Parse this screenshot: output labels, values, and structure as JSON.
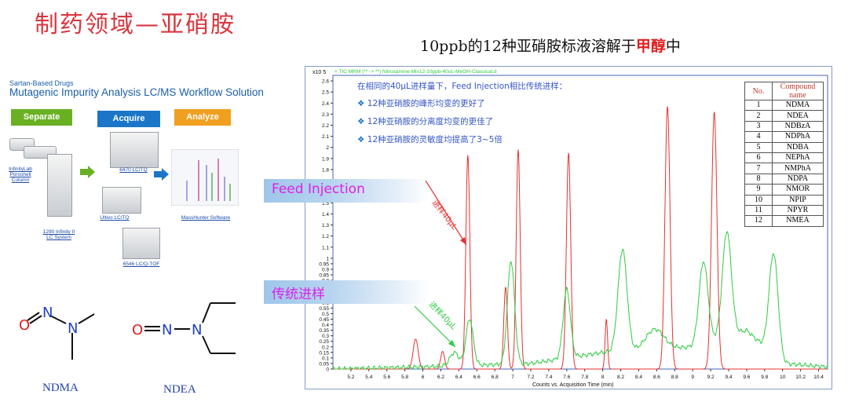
{
  "page_title": "制药领域—亚硝胺",
  "chart_title_pre": "10ppb的12种亚硝胺标液溶解于",
  "chart_title_hl": "甲醇",
  "chart_title_post": "中",
  "workflow": {
    "subtitle": "Sartan-Based Drugs",
    "title": "Mutagenic Impurity Analysis LC/MS Workflow Solution",
    "steps": [
      {
        "label": "Separate",
        "color": "#6ab023"
      },
      {
        "label": "Acquire",
        "color": "#1b76c8"
      },
      {
        "label": "Analyze",
        "color": "#f0a020"
      }
    ],
    "captions": {
      "column": "InfinityLab Poroshell Column",
      "lc": "1290 Infinity II LC System",
      "q6470": "6470 LC/TQ",
      "ultivo": "Ultivo LC/TQ",
      "qtof": "6546 LC/Q-TOF",
      "software": "MassHunter Software"
    }
  },
  "molecules": [
    {
      "name": "NDMA"
    },
    {
      "name": "NDEA"
    }
  ],
  "side_labels": {
    "feed": "Feed Injection",
    "traditional": "传统进样"
  },
  "curve_labels": {
    "red": "进样40μL",
    "green": "进样40μL"
  },
  "header_label": "+ TIC MRM (** -> **) Nitrosamine-Mix12-10ppb-40uL-MeOH-Classical.d",
  "notes": {
    "intro": "在相同的40μL进样量下，Feed Injection相比传统进样：",
    "items": [
      "12种亚硝胺的峰形均变的更好了",
      "12种亚硝胺的分离度均变的更佳了",
      "12种亚硝胺的灵敏度均提高了3~5倍"
    ]
  },
  "table": {
    "headers": [
      "No.",
      "Compound name"
    ],
    "rows": [
      [
        "1",
        "NDMA"
      ],
      [
        "2",
        "NDEA"
      ],
      [
        "3",
        "NDBzA"
      ],
      [
        "4",
        "NDPhA"
      ],
      [
        "5",
        "NDBA"
      ],
      [
        "6",
        "NEPhA"
      ],
      [
        "7",
        "NMPhA"
      ],
      [
        "8",
        "NDPA"
      ],
      [
        "9",
        "NMOR"
      ],
      [
        "10",
        "NPIP"
      ],
      [
        "11",
        "NPYR"
      ],
      [
        "12",
        "NMEA"
      ]
    ]
  },
  "chart_data": {
    "type": "line",
    "xlabel": "Counts vs. Acquisition Time (min)",
    "ylabel_exp": "x10 5",
    "xlim": [
      5.0,
      10.5
    ],
    "ylim": [
      0,
      2.65
    ],
    "xticks": [
      "5.2",
      "5.4",
      "5.6",
      "5.8",
      "6",
      "6.2",
      "6.4",
      "6.6",
      "6.8",
      "7",
      "7.2",
      "7.4",
      "7.6",
      "7.8",
      "8",
      "8.2",
      "8.4",
      "8.6",
      "8.8",
      "9",
      "9.2",
      "9.4",
      "9.6",
      "9.8",
      "10",
      "10.2",
      "10.4"
    ],
    "yticks": [
      "0",
      "0.05",
      "0.1",
      "0.15",
      "0.2",
      "0.25",
      "0.3",
      "0.35",
      "0.4",
      "0.45",
      "0.5",
      "0.55",
      "0.6",
      "0.65",
      "0.7",
      "0.75",
      "0.8",
      "0.85",
      "0.9",
      "0.95",
      "1",
      "1.1",
      "1.2",
      "1.3",
      "1.4",
      "1.5",
      "1.6",
      "1.7",
      "1.8",
      "1.9",
      "2",
      "2.1",
      "2.2",
      "2.3",
      "2.4",
      "2.5",
      "2.6"
    ],
    "series": [
      {
        "color": "#e83030",
        "peaks": [
          [
            5.92,
            0.27,
            0.028
          ],
          [
            6.22,
            0.16,
            0.022
          ],
          [
            6.5,
            1.93,
            0.022
          ],
          [
            6.92,
            0.74,
            0.02
          ],
          [
            7.06,
            1.98,
            0.022
          ],
          [
            7.62,
            1.95,
            0.024
          ],
          [
            8.04,
            0.45,
            0.014
          ],
          [
            8.72,
            2.37,
            0.028
          ],
          [
            9.24,
            2.32,
            0.03
          ]
        ]
      },
      {
        "color": "#2ecc40",
        "peaks": [
          [
            6.35,
            0.12,
            0.05
          ],
          [
            6.52,
            0.42,
            0.04
          ],
          [
            6.98,
            0.93,
            0.04
          ],
          [
            7.6,
            0.62,
            0.04
          ],
          [
            8.22,
            0.92,
            0.05
          ],
          [
            8.58,
            0.18,
            0.1
          ],
          [
            9.12,
            0.74,
            0.05
          ],
          [
            9.38,
            0.95,
            0.05
          ],
          [
            9.9,
            0.92,
            0.05
          ]
        ],
        "baseline": [
          [
            5.0,
            0.0
          ],
          [
            6.0,
            0.02
          ],
          [
            7.2,
            0.05
          ],
          [
            8.0,
            0.15
          ],
          [
            9.0,
            0.2
          ],
          [
            9.6,
            0.35
          ],
          [
            10.0,
            0.05
          ],
          [
            10.5,
            0.02
          ]
        ]
      }
    ]
  },
  "colors": {
    "title": "#d9363e",
    "accent": "#1b5fa8"
  }
}
